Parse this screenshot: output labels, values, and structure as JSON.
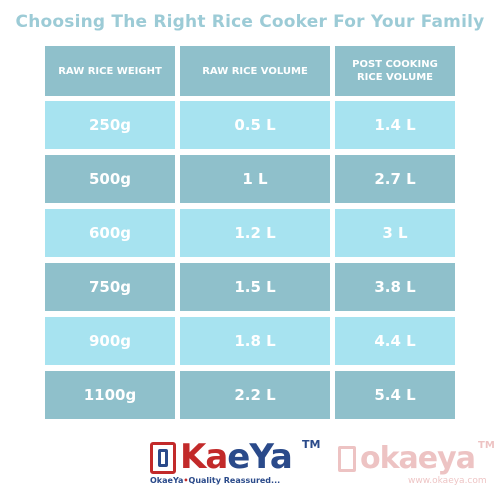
{
  "title": "Choosing The Right Rice Cooker For Your Family",
  "table": {
    "headers": [
      "RAW RICE WEIGHT",
      "RAW RICE VOLUME",
      "POST COOKING\nRICE VOLUME"
    ],
    "rows": [
      [
        "250g",
        "0.5 L",
        "1.4 L"
      ],
      [
        "500g",
        "1 L",
        "2.7 L"
      ],
      [
        "600g",
        "1.2 L",
        "3 L"
      ],
      [
        "750g",
        "1.5 L",
        "3.8 L"
      ],
      [
        "900g",
        "1.8 L",
        "4.4 L"
      ],
      [
        "1100g",
        "2.2 L",
        "5.4 L"
      ]
    ]
  },
  "colors": {
    "title": "#9ccbd6",
    "header_bg": "#8fc0cb",
    "row_light": "#a7e3f0",
    "row_dark": "#8fc0cb",
    "brand_red": "#c22a2a",
    "brand_blue": "#2a4a8a"
  },
  "logo": {
    "word_a": "Ka",
    "word_b": "eYa",
    "tm": "TM",
    "tagline_a": "OkaeYa",
    "tagline_dot": "•",
    "tagline_b": "Quality Reassured..."
  },
  "watermark": {
    "word": "okaeya",
    "tm": "TM",
    "url": "www.okaeya.com"
  }
}
